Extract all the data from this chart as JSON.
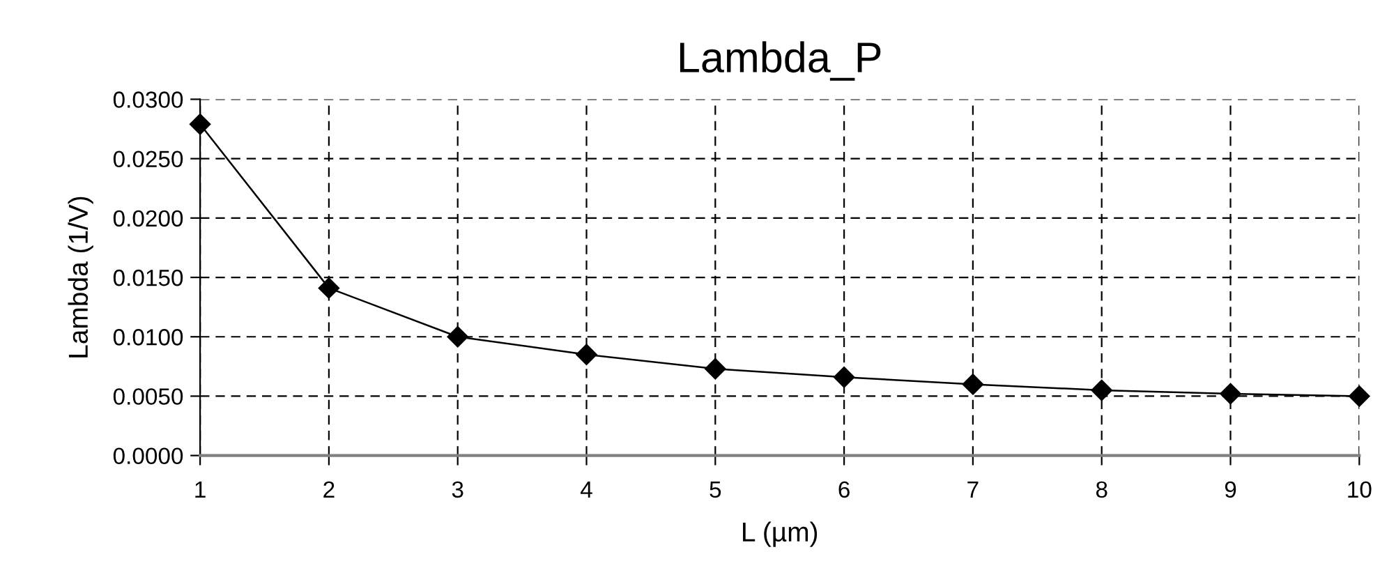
{
  "chart_data": {
    "type": "line",
    "title": "Lambda_P",
    "xlabel": "L (µm)",
    "ylabel": "Lambda (1/V)",
    "x": [
      1,
      2,
      3,
      4,
      5,
      6,
      7,
      8,
      9,
      10
    ],
    "series": [
      {
        "color": "#000000",
        "values": [
          0.0279,
          0.0141,
          0.01,
          0.0085,
          0.0073,
          0.0066,
          0.006,
          0.0055,
          0.0052,
          0.005
        ]
      }
    ],
    "xlim": [
      1,
      10
    ],
    "xticks": [
      1,
      2,
      3,
      4,
      5,
      6,
      7,
      8,
      9,
      10
    ],
    "ylim": [
      0,
      0.03
    ],
    "yticks": [
      {
        "value": 0,
        "label": "0.0000"
      },
      {
        "value": 0.005,
        "label": "0.0050"
      },
      {
        "value": 0.01,
        "label": "0.0100"
      },
      {
        "value": 0.015,
        "label": "0.0150"
      },
      {
        "value": 0.02,
        "label": "0.0200"
      },
      {
        "value": 0.025,
        "label": "0.0250"
      },
      {
        "value": 0.03,
        "label": "0.0300"
      }
    ],
    "grid": true,
    "marker": "diamond",
    "line_style": "solid",
    "legend": false
  }
}
